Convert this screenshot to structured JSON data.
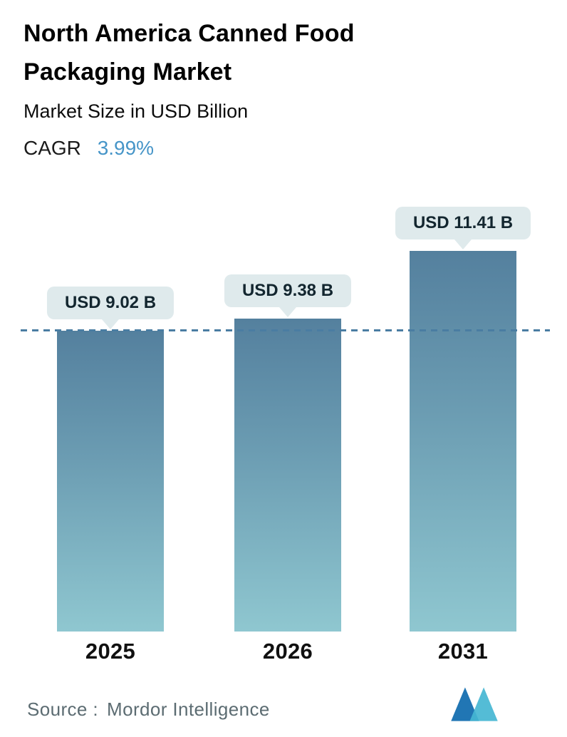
{
  "header": {
    "title": "North America Canned Food Packaging Market",
    "subtitle": "Market Size in USD Billion",
    "cagr_label": "CAGR",
    "cagr_value": "3.99%"
  },
  "chart_data": {
    "type": "bar",
    "title": "North America Canned Food Packaging Market",
    "subtitle": "Market Size in USD Billion",
    "cagr": "3.99%",
    "unit": "USD Billion",
    "categories": [
      "2025",
      "2026",
      "2031"
    ],
    "values": [
      9.02,
      9.38,
      11.41
    ],
    "value_labels": [
      "USD 9.02 B",
      "USD 9.38 B",
      "USD 11.41 B"
    ],
    "ylim": [
      0,
      12.6
    ],
    "grid": false,
    "legend": "none",
    "reference_line": {
      "value": 9.02,
      "style": "dashed"
    }
  },
  "footer": {
    "source_label": "Source :",
    "source_value": "Mordor Intelligence",
    "logo_icon": "mordor-intelligence-logo"
  },
  "colors": {
    "bar_gradient_top": "#54809e",
    "bar_gradient_bottom": "#8fc7d0",
    "accent_blue": "#4695c8",
    "callout_bg": "#dfeaec",
    "dashed_line": "#4a7da2",
    "text_dark": "#000000",
    "source_gray": "#5c6c72",
    "logo_dark_blue": "#2176b4",
    "logo_teal": "#45b6d2"
  }
}
